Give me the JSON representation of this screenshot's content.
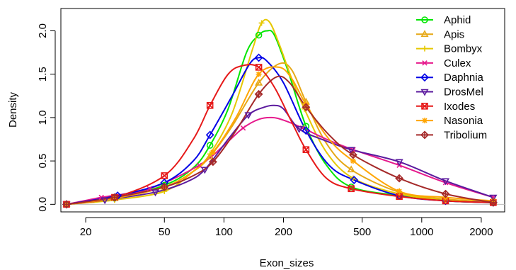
{
  "chart_data": {
    "type": "line",
    "xlabel": "Exon_sizes",
    "ylabel": "Density",
    "x_scale": "log",
    "xlim": [
      16,
      2500
    ],
    "ylim": [
      -0.03,
      2.2
    ],
    "x_ticks": [
      {
        "value": 20,
        "label": "20"
      },
      {
        "value": 50,
        "label": "50"
      },
      {
        "value": 100,
        "label": "100"
      },
      {
        "value": 200,
        "label": "200"
      },
      {
        "value": 500,
        "label": "500"
      },
      {
        "value": 1000,
        "label": "1000"
      },
      {
        "value": 2000,
        "label": "2000"
      }
    ],
    "y_ticks": [
      {
        "value": 0.0,
        "label": "0.0"
      },
      {
        "value": 0.5,
        "label": "0.5"
      },
      {
        "value": 1.0,
        "label": "1.0"
      },
      {
        "value": 1.5,
        "label": "1.5"
      },
      {
        "value": 2.0,
        "label": "2.0"
      }
    ],
    "baseline": 0,
    "legend_position": "top-right",
    "series": [
      {
        "name": "Aphid",
        "color": "#00e600",
        "marker": "circle",
        "points": [
          [
            16,
            0
          ],
          [
            28,
            0.07
          ],
          [
            50,
            0.22
          ],
          [
            85,
            0.68
          ],
          [
            150,
            1.95
          ],
          [
            260,
            0.9
          ],
          [
            440,
            0.2
          ],
          [
            770,
            0.1
          ],
          [
            1320,
            0.04
          ],
          [
            2300,
            0.02
          ]
        ],
        "curve": [
          [
            16,
            0
          ],
          [
            28,
            0.07
          ],
          [
            50,
            0.22
          ],
          [
            70,
            0.42
          ],
          [
            85,
            0.68
          ],
          [
            105,
            1.1
          ],
          [
            130,
            1.75
          ],
          [
            150,
            1.95
          ],
          [
            165,
            2.0
          ],
          [
            180,
            1.95
          ],
          [
            210,
            1.55
          ],
          [
            260,
            0.9
          ],
          [
            330,
            0.45
          ],
          [
            440,
            0.2
          ],
          [
            770,
            0.1
          ],
          [
            1320,
            0.04
          ],
          [
            2300,
            0.02
          ]
        ]
      },
      {
        "name": "Apis",
        "color": "#e6a817",
        "marker": "triangle",
        "points": [
          [
            16,
            0
          ],
          [
            28,
            0.07
          ],
          [
            50,
            0.2
          ],
          [
            85,
            0.55
          ],
          [
            150,
            1.4
          ],
          [
            260,
            1.18
          ],
          [
            440,
            0.4
          ],
          [
            770,
            0.14
          ],
          [
            1320,
            0.06
          ],
          [
            2300,
            0.03
          ]
        ],
        "curve": [
          [
            16,
            0
          ],
          [
            28,
            0.07
          ],
          [
            50,
            0.2
          ],
          [
            70,
            0.38
          ],
          [
            85,
            0.55
          ],
          [
            110,
            0.9
          ],
          [
            150,
            1.4
          ],
          [
            190,
            1.62
          ],
          [
            220,
            1.55
          ],
          [
            260,
            1.18
          ],
          [
            330,
            0.7
          ],
          [
            440,
            0.4
          ],
          [
            770,
            0.14
          ],
          [
            1320,
            0.06
          ],
          [
            2300,
            0.03
          ]
        ]
      },
      {
        "name": "Bombyx",
        "color": "#e6c800",
        "marker": "plus",
        "points": [
          [
            16,
            0
          ],
          [
            28,
            0.05
          ],
          [
            50,
            0.15
          ],
          [
            85,
            0.58
          ],
          [
            155,
            2.09
          ],
          [
            255,
            1.1
          ],
          [
            450,
            0.3
          ],
          [
            770,
            0.12
          ],
          [
            1320,
            0.05
          ],
          [
            2300,
            0.02
          ]
        ],
        "curve": [
          [
            16,
            0
          ],
          [
            28,
            0.05
          ],
          [
            50,
            0.15
          ],
          [
            70,
            0.38
          ],
          [
            85,
            0.58
          ],
          [
            110,
            1.05
          ],
          [
            140,
            1.8
          ],
          [
            155,
            2.09
          ],
          [
            170,
            2.1
          ],
          [
            190,
            1.85
          ],
          [
            220,
            1.45
          ],
          [
            255,
            1.1
          ],
          [
            330,
            0.6
          ],
          [
            450,
            0.3
          ],
          [
            770,
            0.12
          ],
          [
            1320,
            0.05
          ],
          [
            2300,
            0.02
          ]
        ]
      },
      {
        "name": "Culex",
        "color": "#e6198c",
        "marker": "x",
        "points": [
          [
            16,
            0
          ],
          [
            24,
            0.08
          ],
          [
            42,
            0.18
          ],
          [
            75,
            0.45
          ],
          [
            125,
            0.88
          ],
          [
            250,
            0.88
          ],
          [
            450,
            0.63
          ],
          [
            770,
            0.45
          ],
          [
            1320,
            0.25
          ],
          [
            2300,
            0.08
          ]
        ],
        "curve": [
          [
            16,
            0
          ],
          [
            24,
            0.08
          ],
          [
            42,
            0.18
          ],
          [
            75,
            0.45
          ],
          [
            100,
            0.68
          ],
          [
            125,
            0.88
          ],
          [
            150,
            0.98
          ],
          [
            175,
            1.0
          ],
          [
            200,
            0.97
          ],
          [
            250,
            0.88
          ],
          [
            330,
            0.75
          ],
          [
            450,
            0.63
          ],
          [
            770,
            0.45
          ],
          [
            1320,
            0.25
          ],
          [
            2300,
            0.08
          ]
        ]
      },
      {
        "name": "Daphnia",
        "color": "#0000e6",
        "marker": "diamond",
        "points": [
          [
            16,
            0
          ],
          [
            29,
            0.1
          ],
          [
            50,
            0.25
          ],
          [
            85,
            0.8
          ],
          [
            150,
            1.69
          ],
          [
            260,
            0.85
          ],
          [
            455,
            0.28
          ],
          [
            770,
            0.1
          ],
          [
            1320,
            0.04
          ],
          [
            2300,
            0.02
          ]
        ],
        "curve": [
          [
            16,
            0
          ],
          [
            29,
            0.1
          ],
          [
            50,
            0.25
          ],
          [
            70,
            0.5
          ],
          [
            85,
            0.8
          ],
          [
            110,
            1.25
          ],
          [
            135,
            1.62
          ],
          [
            150,
            1.69
          ],
          [
            165,
            1.65
          ],
          [
            200,
            1.4
          ],
          [
            260,
            0.85
          ],
          [
            340,
            0.45
          ],
          [
            455,
            0.28
          ],
          [
            770,
            0.1
          ],
          [
            1320,
            0.04
          ],
          [
            2300,
            0.02
          ]
        ]
      },
      {
        "name": "DrosMel",
        "color": "#5b1a9e",
        "marker": "triangle-down",
        "points": [
          [
            16,
            0
          ],
          [
            25,
            0.05
          ],
          [
            45,
            0.14
          ],
          [
            80,
            0.4
          ],
          [
            133,
            1.03
          ],
          [
            240,
            0.87
          ],
          [
            440,
            0.63
          ],
          [
            770,
            0.49
          ],
          [
            1320,
            0.27
          ],
          [
            2300,
            0.08
          ]
        ],
        "curve": [
          [
            16,
            0
          ],
          [
            25,
            0.05
          ],
          [
            45,
            0.14
          ],
          [
            65,
            0.26
          ],
          [
            80,
            0.4
          ],
          [
            105,
            0.75
          ],
          [
            133,
            1.03
          ],
          [
            160,
            1.12
          ],
          [
            180,
            1.14
          ],
          [
            200,
            1.1
          ],
          [
            240,
            0.87
          ],
          [
            320,
            0.74
          ],
          [
            440,
            0.63
          ],
          [
            770,
            0.49
          ],
          [
            1320,
            0.27
          ],
          [
            2300,
            0.08
          ]
        ]
      },
      {
        "name": "Ixodes",
        "color": "#e61919",
        "marker": "square-x",
        "points": [
          [
            16,
            0
          ],
          [
            28,
            0.08
          ],
          [
            50,
            0.33
          ],
          [
            85,
            1.14
          ],
          [
            150,
            1.58
          ],
          [
            260,
            0.63
          ],
          [
            440,
            0.18
          ],
          [
            770,
            0.09
          ],
          [
            1320,
            0.04
          ],
          [
            2300,
            0.02
          ]
        ],
        "curve": [
          [
            16,
            0
          ],
          [
            28,
            0.08
          ],
          [
            50,
            0.33
          ],
          [
            70,
            0.75
          ],
          [
            85,
            1.14
          ],
          [
            105,
            1.5
          ],
          [
            125,
            1.6
          ],
          [
            150,
            1.58
          ],
          [
            180,
            1.35
          ],
          [
            220,
            0.95
          ],
          [
            260,
            0.63
          ],
          [
            330,
            0.3
          ],
          [
            440,
            0.18
          ],
          [
            770,
            0.09
          ],
          [
            1320,
            0.04
          ],
          [
            2300,
            0.02
          ]
        ]
      },
      {
        "name": "Nasonia",
        "color": "#ffa500",
        "marker": "asterisk",
        "points": [
          [
            16,
            0
          ],
          [
            28,
            0.07
          ],
          [
            50,
            0.2
          ],
          [
            88,
            0.6
          ],
          [
            150,
            1.5
          ],
          [
            260,
            1.15
          ],
          [
            450,
            0.5
          ],
          [
            770,
            0.15
          ],
          [
            1320,
            0.08
          ],
          [
            2300,
            0.04
          ]
        ],
        "curve": [
          [
            16,
            0
          ],
          [
            28,
            0.07
          ],
          [
            50,
            0.2
          ],
          [
            70,
            0.38
          ],
          [
            88,
            0.6
          ],
          [
            115,
            1.0
          ],
          [
            150,
            1.5
          ],
          [
            190,
            1.58
          ],
          [
            220,
            1.45
          ],
          [
            260,
            1.15
          ],
          [
            340,
            0.75
          ],
          [
            450,
            0.5
          ],
          [
            770,
            0.15
          ],
          [
            1320,
            0.08
          ],
          [
            2300,
            0.04
          ]
        ]
      },
      {
        "name": "Tribolium",
        "color": "#a52a2a",
        "marker": "diamond-plus",
        "points": [
          [
            16,
            0
          ],
          [
            28,
            0.08
          ],
          [
            50,
            0.2
          ],
          [
            88,
            0.49
          ],
          [
            150,
            1.27
          ],
          [
            260,
            1.12
          ],
          [
            450,
            0.57
          ],
          [
            770,
            0.3
          ],
          [
            1320,
            0.12
          ],
          [
            2300,
            0.02
          ]
        ],
        "curve": [
          [
            16,
            0
          ],
          [
            28,
            0.08
          ],
          [
            50,
            0.2
          ],
          [
            70,
            0.33
          ],
          [
            88,
            0.49
          ],
          [
            115,
            0.85
          ],
          [
            150,
            1.27
          ],
          [
            185,
            1.47
          ],
          [
            215,
            1.4
          ],
          [
            260,
            1.12
          ],
          [
            340,
            0.8
          ],
          [
            450,
            0.57
          ],
          [
            770,
            0.3
          ],
          [
            1320,
            0.12
          ],
          [
            2300,
            0.02
          ]
        ]
      }
    ]
  }
}
